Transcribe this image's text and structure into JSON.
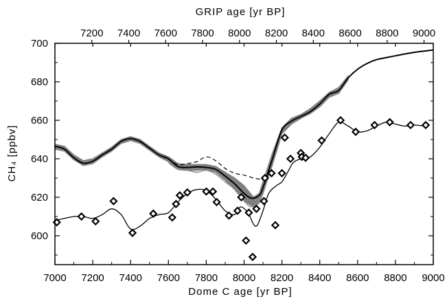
{
  "chart_data": {
    "type": "line",
    "xlabel": "Dome C age [yr BP]",
    "ylabel": "CH₄ [ppbv]",
    "top_xlabel": "GRIP age [yr BP]",
    "xlim": [
      7000,
      9000
    ],
    "ylim": [
      585,
      700
    ],
    "top_xlim": [
      7000,
      9050
    ],
    "x_ticks": [
      7000,
      7200,
      7400,
      7600,
      7800,
      8000,
      8200,
      8400,
      8600,
      8800,
      9000
    ],
    "y_ticks": [
      600,
      620,
      640,
      660,
      680,
      700
    ],
    "top_x_ticks": [
      7200,
      7400,
      7600,
      7800,
      8000,
      8200,
      8400,
      8600,
      8800,
      9000
    ],
    "grid": false,
    "series": [
      {
        "style": "band",
        "color": "#808080",
        "upper": [
          [
            7000,
            647.5
          ],
          [
            7050,
            646.5
          ],
          [
            7100,
            642
          ],
          [
            7150,
            639
          ],
          [
            7200,
            640
          ],
          [
            7250,
            643
          ],
          [
            7300,
            646
          ],
          [
            7350,
            650
          ],
          [
            7400,
            651.5
          ],
          [
            7450,
            650
          ],
          [
            7500,
            646.5
          ],
          [
            7550,
            643
          ],
          [
            7600,
            641
          ],
          [
            7650,
            637.5
          ],
          [
            7700,
            637
          ],
          [
            7750,
            637
          ],
          [
            7800,
            637
          ],
          [
            7850,
            636
          ],
          [
            7900,
            633
          ],
          [
            7950,
            630
          ],
          [
            8000,
            626
          ],
          [
            8050,
            620
          ],
          [
            8080,
            622
          ],
          [
            8100,
            628
          ],
          [
            8150,
            643
          ],
          [
            8200,
            656
          ],
          [
            8250,
            661
          ],
          [
            8300,
            663
          ],
          [
            8350,
            666
          ],
          [
            8400,
            670
          ],
          [
            8450,
            674.5
          ],
          [
            8500,
            677
          ],
          [
            8550,
            683
          ]
        ],
        "lower": [
          [
            7000,
            645
          ],
          [
            7050,
            644
          ],
          [
            7100,
            639.5
          ],
          [
            7150,
            636.5
          ],
          [
            7200,
            637.5
          ],
          [
            7250,
            641
          ],
          [
            7300,
            644
          ],
          [
            7350,
            648
          ],
          [
            7400,
            649.5
          ],
          [
            7450,
            648
          ],
          [
            7500,
            644.5
          ],
          [
            7550,
            641
          ],
          [
            7600,
            638.5
          ],
          [
            7650,
            634.5
          ],
          [
            7700,
            634
          ],
          [
            7750,
            634
          ],
          [
            7800,
            634.5
          ],
          [
            7850,
            633
          ],
          [
            7900,
            629
          ],
          [
            7950,
            624
          ],
          [
            8000,
            618
          ],
          [
            8050,
            615
          ],
          [
            8080,
            617
          ],
          [
            8100,
            622
          ],
          [
            8150,
            637
          ],
          [
            8200,
            653
          ],
          [
            8250,
            658
          ],
          [
            8300,
            661
          ],
          [
            8350,
            663.5
          ],
          [
            8400,
            667
          ],
          [
            8450,
            672
          ],
          [
            8500,
            674
          ],
          [
            8550,
            681
          ]
        ]
      },
      {
        "style": "dashed",
        "color": "#000000",
        "values": [
          [
            7600,
            640
          ],
          [
            7650,
            637
          ],
          [
            7700,
            637.5
          ],
          [
            7750,
            638.5
          ],
          [
            7800,
            641
          ],
          [
            7850,
            639
          ],
          [
            7900,
            635
          ],
          [
            7950,
            632.5
          ],
          [
            8000,
            631.5
          ],
          [
            8050,
            630
          ],
          [
            8100,
            629
          ]
        ]
      },
      {
        "style": "thin",
        "color": "#8c8c8c",
        "values": [
          [
            7600,
            638
          ],
          [
            7650,
            634.5
          ],
          [
            7700,
            634
          ],
          [
            7750,
            633
          ],
          [
            7800,
            634
          ],
          [
            7850,
            632
          ],
          [
            7900,
            628
          ],
          [
            7950,
            624
          ],
          [
            8000,
            618
          ],
          [
            8040,
            615
          ],
          [
            8080,
            619
          ],
          [
            8120,
            628
          ]
        ]
      },
      {
        "style": "thick",
        "color": "#000000",
        "values": [
          [
            7000,
            646.5
          ],
          [
            7050,
            645
          ],
          [
            7100,
            640.5
          ],
          [
            7150,
            637.7
          ],
          [
            7200,
            638.7
          ],
          [
            7250,
            642
          ],
          [
            7300,
            645
          ],
          [
            7350,
            649
          ],
          [
            7400,
            650.5
          ],
          [
            7450,
            649
          ],
          [
            7500,
            645.5
          ],
          [
            7550,
            642
          ],
          [
            7600,
            640
          ],
          [
            7650,
            636
          ],
          [
            7700,
            635.5
          ],
          [
            7750,
            635.8
          ],
          [
            7800,
            635.5
          ],
          [
            7850,
            634.5
          ],
          [
            7900,
            631
          ],
          [
            7950,
            627
          ],
          [
            8000,
            622
          ],
          [
            8040,
            619.5
          ],
          [
            8080,
            621
          ],
          [
            8100,
            625
          ],
          [
            8150,
            640
          ],
          [
            8200,
            655
          ],
          [
            8250,
            659.5
          ],
          [
            8300,
            662
          ],
          [
            8350,
            664.5
          ],
          [
            8400,
            668.5
          ],
          [
            8450,
            673.5
          ],
          [
            8500,
            675.5
          ],
          [
            8550,
            682
          ],
          [
            8600,
            686.5
          ],
          [
            8650,
            689.5
          ],
          [
            8700,
            691.5
          ],
          [
            8800,
            693.5
          ],
          [
            8900,
            695.3
          ],
          [
            9000,
            696.5
          ]
        ]
      },
      {
        "style": "smooth",
        "color": "#000000",
        "values": [
          [
            7000,
            608
          ],
          [
            7050,
            609
          ],
          [
            7100,
            610
          ],
          [
            7150,
            610
          ],
          [
            7200,
            609
          ],
          [
            7250,
            611
          ],
          [
            7300,
            614
          ],
          [
            7350,
            611
          ],
          [
            7400,
            603.5
          ],
          [
            7450,
            605
          ],
          [
            7500,
            609
          ],
          [
            7550,
            611
          ],
          [
            7600,
            612
          ],
          [
            7650,
            617.5
          ],
          [
            7700,
            622
          ],
          [
            7750,
            624
          ],
          [
            7800,
            623.5
          ],
          [
            7850,
            619
          ],
          [
            7900,
            613
          ],
          [
            7950,
            611
          ],
          [
            7980,
            615
          ],
          [
            8020,
            612
          ],
          [
            8050,
            606
          ],
          [
            8070,
            605.5
          ],
          [
            8100,
            613
          ],
          [
            8130,
            622
          ],
          [
            8170,
            626
          ],
          [
            8200,
            628
          ],
          [
            8230,
            633
          ],
          [
            8260,
            638
          ],
          [
            8300,
            640
          ],
          [
            8350,
            641
          ],
          [
            8400,
            646
          ],
          [
            8450,
            653
          ],
          [
            8500,
            659
          ],
          [
            8550,
            657
          ],
          [
            8600,
            654
          ],
          [
            8650,
            654.5
          ],
          [
            8700,
            657
          ],
          [
            8750,
            659
          ],
          [
            8800,
            658
          ],
          [
            8850,
            657
          ],
          [
            8900,
            657.5
          ],
          [
            8960,
            657
          ]
        ]
      },
      {
        "style": "markers",
        "marker": "diamond",
        "color": "#000000",
        "values": [
          [
            7010,
            607
          ],
          [
            7140,
            610
          ],
          [
            7215,
            607.5
          ],
          [
            7310,
            618
          ],
          [
            7410,
            601.5
          ],
          [
            7520,
            611.5
          ],
          [
            7620,
            609.5
          ],
          [
            7640,
            616.5
          ],
          [
            7660,
            621
          ],
          [
            7700,
            622.5
          ],
          [
            7800,
            623
          ],
          [
            7835,
            623
          ],
          [
            7855,
            617.5
          ],
          [
            7920,
            610.5
          ],
          [
            7965,
            613
          ],
          [
            7985,
            620
          ],
          [
            8010,
            597.5
          ],
          [
            8025,
            612
          ],
          [
            8045,
            589
          ],
          [
            8065,
            614
          ],
          [
            8105,
            618
          ],
          [
            8110,
            630
          ],
          [
            8145,
            632.5
          ],
          [
            8165,
            605.5
          ],
          [
            8200,
            632.5
          ],
          [
            8215,
            651
          ],
          [
            8245,
            640
          ],
          [
            8300,
            643
          ],
          [
            8305,
            641
          ],
          [
            8325,
            640.5
          ],
          [
            8410,
            649.5
          ],
          [
            8510,
            660
          ],
          [
            8590,
            654
          ],
          [
            8690,
            657.5
          ],
          [
            8770,
            659
          ],
          [
            8880,
            657.5
          ],
          [
            8960,
            657.5
          ]
        ]
      }
    ]
  }
}
